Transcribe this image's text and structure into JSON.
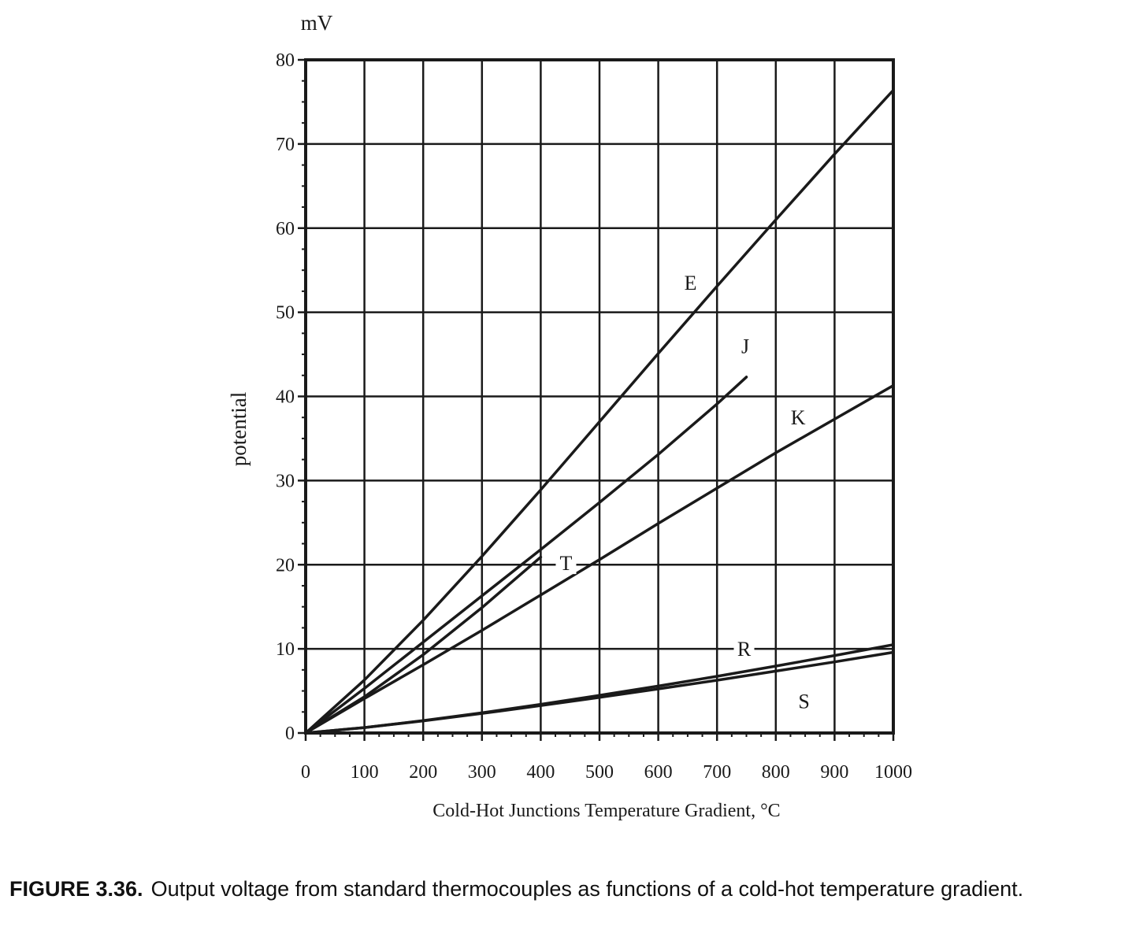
{
  "chart_data": {
    "type": "line",
    "title": "",
    "ylabel": "potential",
    "yunit": "mV",
    "xlabel": "Cold-Hot Junctions Temperature Gradient, °C",
    "xlim": [
      0,
      1000
    ],
    "ylim": [
      0,
      80
    ],
    "xticks": [
      0,
      100,
      200,
      300,
      400,
      500,
      600,
      700,
      800,
      900,
      1000
    ],
    "yticks": [
      0,
      10,
      20,
      30,
      40,
      50,
      60,
      70,
      80
    ],
    "grid": true,
    "series": [
      {
        "name": "E",
        "x": [
          0,
          100,
          200,
          300,
          400,
          500,
          600,
          700,
          800,
          900,
          1000
        ],
        "y": [
          0,
          6.3,
          13.4,
          21.0,
          28.9,
          37.0,
          45.1,
          53.1,
          61.0,
          68.8,
          76.4
        ]
      },
      {
        "name": "J",
        "x": [
          0,
          100,
          200,
          300,
          400,
          500,
          600,
          700,
          750
        ],
        "y": [
          0,
          5.3,
          10.8,
          16.3,
          21.8,
          27.4,
          33.1,
          39.1,
          42.3
        ]
      },
      {
        "name": "K",
        "x": [
          0,
          100,
          200,
          300,
          400,
          500,
          600,
          700,
          800,
          900,
          1000
        ],
        "y": [
          0,
          4.1,
          8.1,
          12.2,
          16.4,
          20.6,
          24.9,
          29.1,
          33.3,
          37.3,
          41.3
        ]
      },
      {
        "name": "T",
        "x": [
          0,
          100,
          200,
          300,
          400
        ],
        "y": [
          0,
          4.3,
          9.3,
          14.9,
          20.9
        ]
      },
      {
        "name": "R",
        "x": [
          0,
          100,
          200,
          300,
          400,
          500,
          600,
          700,
          800,
          900,
          1000
        ],
        "y": [
          0,
          0.65,
          1.47,
          2.4,
          3.41,
          4.47,
          5.58,
          6.74,
          7.95,
          9.21,
          10.5
        ]
      },
      {
        "name": "S",
        "x": [
          0,
          100,
          200,
          300,
          400,
          500,
          600,
          700,
          800,
          900,
          1000
        ],
        "y": [
          0,
          0.65,
          1.44,
          2.32,
          3.26,
          4.23,
          5.24,
          6.27,
          7.35,
          8.45,
          9.59
        ]
      }
    ],
    "labels": [
      {
        "text": "E",
        "x": 655,
        "y": 53.5
      },
      {
        "text": "J",
        "x": 748,
        "y": 46.0
      },
      {
        "text": "K",
        "x": 838,
        "y": 37.5
      },
      {
        "text": "T",
        "x": 443,
        "y": 20.2
      },
      {
        "text": "R",
        "x": 746,
        "y": 10.0
      },
      {
        "text": "S",
        "x": 848,
        "y": 3.8
      }
    ]
  },
  "caption": {
    "figure_number": "FIGURE 3.36.",
    "text": "Output voltage from standard thermocouples as functions of a cold-hot temperature gradient."
  }
}
